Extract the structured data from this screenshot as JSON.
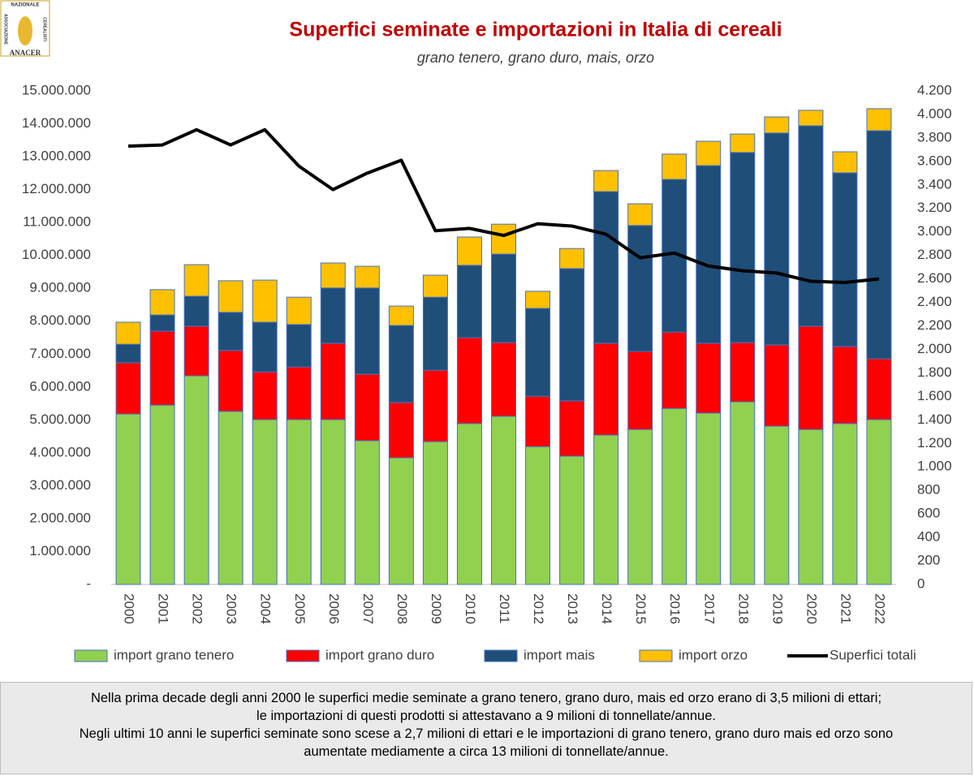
{
  "logo": {
    "name": "ANACER",
    "top": "NAZIONALE",
    "left": "ASSOCIAZIONE",
    "right": "CEREALISTI"
  },
  "chart_data": {
    "type": "bar",
    "stacked": true,
    "title": "Superfici seminate e importazioni in Italia di cereali",
    "subtitle": "grano tenero, grano duro, mais, orzo",
    "categories": [
      "2000",
      "2001",
      "2002",
      "2003",
      "2004",
      "2005",
      "2006",
      "2007",
      "2008",
      "2009",
      "2010",
      "2011",
      "2012",
      "2013",
      "2014",
      "2015",
      "2016",
      "2017",
      "2018",
      "2019",
      "2020",
      "2021",
      "2022"
    ],
    "series": [
      {
        "name": "import grano tenero",
        "color": "#92d050",
        "values": [
          5180000,
          5450000,
          6340000,
          5260000,
          5010000,
          5010000,
          5010000,
          4370000,
          3850000,
          4340000,
          4890000,
          5110000,
          4190000,
          3900000,
          4540000,
          4710000,
          5350000,
          5210000,
          5550000,
          4810000,
          4710000,
          4890000,
          5010000
        ]
      },
      {
        "name": "import grano duro",
        "color": "#ff0000",
        "values": [
          1560000,
          2250000,
          1510000,
          1850000,
          1450000,
          1600000,
          2320000,
          2020000,
          1680000,
          2170000,
          2610000,
          2240000,
          1530000,
          1680000,
          2790000,
          2370000,
          2320000,
          2120000,
          1800000,
          2470000,
          3140000,
          2340000,
          1850000
        ]
      },
      {
        "name": "import mais",
        "color": "#1f4e79",
        "values": [
          560000,
          490000,
          910000,
          1160000,
          1510000,
          1290000,
          1680000,
          2620000,
          2340000,
          2220000,
          2200000,
          2690000,
          2670000,
          4020000,
          4610000,
          3830000,
          4640000,
          5400000,
          5780000,
          6440000,
          6090000,
          5280000,
          6930000
        ]
      },
      {
        "name": "import orzo",
        "color": "#ffc000",
        "values": [
          670000,
          770000,
          960000,
          960000,
          1280000,
          830000,
          760000,
          660000,
          590000,
          670000,
          860000,
          910000,
          520000,
          610000,
          640000,
          660000,
          770000,
          740000,
          560000,
          490000,
          470000,
          640000,
          670000
        ]
      },
      {
        "name": "Superfici totali",
        "type": "line",
        "axis": "y2",
        "color": "#000000",
        "values": [
          3730,
          3740,
          3870,
          3740,
          3870,
          3560,
          3360,
          3500,
          3610,
          3010,
          3030,
          2970,
          3070,
          3050,
          2980,
          2780,
          2820,
          2710,
          2670,
          2650,
          2580,
          2570,
          2600
        ]
      }
    ],
    "ylim": [
      0,
      15000000
    ],
    "yticks": [
      {
        "value": 0,
        "label": "-"
      },
      {
        "value": 1000000,
        "label": "1.000.000"
      },
      {
        "value": 2000000,
        "label": "2.000.000"
      },
      {
        "value": 3000000,
        "label": "3.000.000"
      },
      {
        "value": 4000000,
        "label": "4.000.000"
      },
      {
        "value": 5000000,
        "label": "5.000.000"
      },
      {
        "value": 6000000,
        "label": "6.000.000"
      },
      {
        "value": 7000000,
        "label": "7.000.000"
      },
      {
        "value": 8000000,
        "label": "8.000.000"
      },
      {
        "value": 9000000,
        "label": "9.000.000"
      },
      {
        "value": 10000000,
        "label": "10.000.000"
      },
      {
        "value": 11000000,
        "label": "11.000.000"
      },
      {
        "value": 12000000,
        "label": "12.000.000"
      },
      {
        "value": 13000000,
        "label": "13.000.000"
      },
      {
        "value": 14000000,
        "label": "14.000.000"
      },
      {
        "value": 15000000,
        "label": "15.000.000"
      }
    ],
    "y2lim": [
      0,
      4200
    ],
    "y2ticks": [
      0,
      200,
      400,
      600,
      800,
      {
        "value": 1000,
        "label": "1.000"
      },
      {
        "value": 1200,
        "label": "1.200"
      },
      {
        "value": 1400,
        "label": "1.400"
      },
      {
        "value": 1600,
        "label": "1.600"
      },
      {
        "value": 1800,
        "label": "1.800"
      },
      {
        "value": 2000,
        "label": "2.000"
      },
      {
        "value": 2200,
        "label": "2.200"
      },
      {
        "value": 2400,
        "label": "2.400"
      },
      {
        "value": 2600,
        "label": "2.600"
      },
      {
        "value": 2800,
        "label": "2.800"
      },
      {
        "value": 3000,
        "label": "3.000"
      },
      {
        "value": 3200,
        "label": "3.200"
      },
      {
        "value": 3400,
        "label": "3.400"
      },
      {
        "value": 3600,
        "label": "3.600"
      },
      {
        "value": 3800,
        "label": "3.800"
      },
      {
        "value": 4000,
        "label": "4.000"
      },
      {
        "value": 4200,
        "label": "4.200"
      }
    ],
    "grid": false,
    "legend": "bottom"
  },
  "note": [
    "Nella prima decade degli anni 2000 le superfici medie seminate a grano tenero, grano duro, mais ed orzo erano di 3,5 milioni di ettari;",
    "le importazioni di questi prodotti si attestavano a 9 milioni di tonnellate/annue.",
    "Negli ultimi 10 anni le superfici seminate sono scese a 2,7 milioni di ettari e le importazioni di grano tenero, grano duro mais ed orzo sono",
    "aumentate mediamente a circa 13 milioni di tonnellate/annue."
  ]
}
